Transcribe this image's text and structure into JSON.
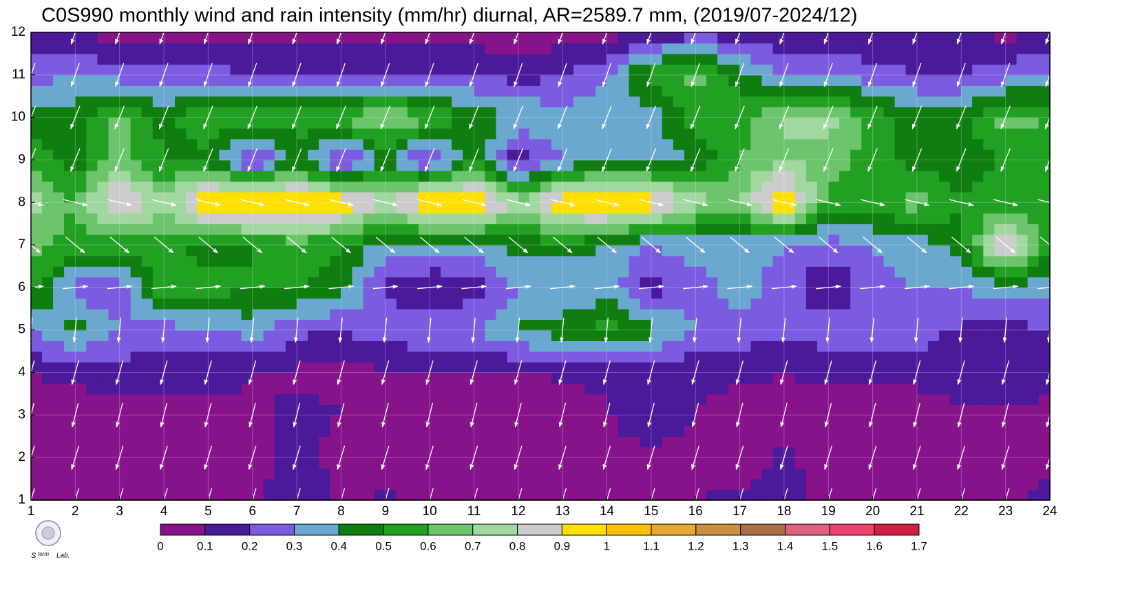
{
  "chart_data": {
    "type": "contour",
    "title": "C0S990 monthly wind and rain intensity (mm/hr) diurnal, AR=2589.7 mm, (2019/07-2024/12)",
    "x": [
      1,
      2,
      3,
      4,
      5,
      6,
      7,
      8,
      9,
      10,
      11,
      12,
      13,
      14,
      15,
      16,
      17,
      18,
      19,
      20,
      21,
      22,
      23,
      24
    ],
    "y": [
      1,
      2,
      3,
      4,
      5,
      6,
      7,
      8,
      9,
      10,
      11,
      12
    ],
    "xlim": [
      1,
      24
    ],
    "ylim": [
      1,
      12
    ],
    "xticks": [
      1,
      2,
      3,
      4,
      5,
      6,
      7,
      8,
      9,
      10,
      11,
      12,
      13,
      14,
      15,
      16,
      17,
      18,
      19,
      20,
      21,
      22,
      23,
      24
    ],
    "yticks": [
      1,
      2,
      3,
      4,
      5,
      6,
      7,
      8,
      9,
      10,
      11,
      12
    ],
    "grid": true,
    "z": [
      [
        0.05,
        0.05,
        0.05,
        0.05,
        0.05,
        0.05,
        0.22,
        0.08,
        0.12,
        0.08,
        0.05,
        0.05,
        0.05,
        0.05,
        0.05,
        0.1,
        0.12,
        0.13,
        0.08,
        0.05,
        0.05,
        0.05,
        0.08,
        0.15
      ],
      [
        0.05,
        0.05,
        0.05,
        0.05,
        0.05,
        0.05,
        0.15,
        0.05,
        0.05,
        0.05,
        0.05,
        0.05,
        0.05,
        0.05,
        0.05,
        0.05,
        0.05,
        0.12,
        0.05,
        0.05,
        0.05,
        0.05,
        0.05,
        0.05
      ],
      [
        0.05,
        0.05,
        0.05,
        0.05,
        0.05,
        0.08,
        0.13,
        0.1,
        0.05,
        0.05,
        0.05,
        0.05,
        0.05,
        0.08,
        0.22,
        0.1,
        0.05,
        0.05,
        0.05,
        0.05,
        0.05,
        0.08,
        0.08,
        0.05
      ],
      [
        0.1,
        0.12,
        0.15,
        0.15,
        0.15,
        0.1,
        0.08,
        0.08,
        0.08,
        0.08,
        0.08,
        0.08,
        0.12,
        0.12,
        0.12,
        0.12,
        0.12,
        0.1,
        0.12,
        0.12,
        0.13,
        0.15,
        0.2,
        0.15
      ],
      [
        0.3,
        0.45,
        0.3,
        0.25,
        0.28,
        0.35,
        0.22,
        0.2,
        0.25,
        0.3,
        0.3,
        0.42,
        0.45,
        0.55,
        0.45,
        0.3,
        0.25,
        0.25,
        0.25,
        0.25,
        0.25,
        0.18,
        0.15,
        0.2
      ],
      [
        0.55,
        0.25,
        0.22,
        0.6,
        0.55,
        0.5,
        0.5,
        0.45,
        0.18,
        0.1,
        0.15,
        0.3,
        0.3,
        0.35,
        0.15,
        0.25,
        0.35,
        0.25,
        0.1,
        0.25,
        0.3,
        0.3,
        0.35,
        0.35
      ],
      [
        0.65,
        0.55,
        0.55,
        0.55,
        0.45,
        0.5,
        0.55,
        0.5,
        0.35,
        0.35,
        0.35,
        0.45,
        0.45,
        0.4,
        0.3,
        0.35,
        0.35,
        0.3,
        0.25,
        0.3,
        0.35,
        0.45,
        0.95,
        0.5
      ],
      [
        0.75,
        0.6,
        0.95,
        0.7,
        1.05,
        1.05,
        1.05,
        1.0,
        0.8,
        1.05,
        1.05,
        0.75,
        1.0,
        1.05,
        1.0,
        0.75,
        0.7,
        1.05,
        0.55,
        0.55,
        0.65,
        0.5,
        0.55,
        0.5
      ],
      [
        0.55,
        0.45,
        0.65,
        0.5,
        0.45,
        0.15,
        0.45,
        0.15,
        0.4,
        0.15,
        0.5,
        0.1,
        0.3,
        0.4,
        0.35,
        0.4,
        0.6,
        0.7,
        0.65,
        0.55,
        0.45,
        0.45,
        0.5,
        0.5
      ],
      [
        0.45,
        0.45,
        0.65,
        0.45,
        0.6,
        0.55,
        0.55,
        0.6,
        0.75,
        0.6,
        0.45,
        0.4,
        0.35,
        0.35,
        0.35,
        0.55,
        0.55,
        0.7,
        0.75,
        0.55,
        0.45,
        0.45,
        0.65,
        0.6
      ],
      [
        0.25,
        0.3,
        0.25,
        0.25,
        0.25,
        0.2,
        0.2,
        0.2,
        0.2,
        0.2,
        0.2,
        0.15,
        0.2,
        0.3,
        0.55,
        0.65,
        0.45,
        0.3,
        0.3,
        0.25,
        0.2,
        0.2,
        0.25,
        0.3
      ],
      [
        0.15,
        0.1,
        0.05,
        0.05,
        0.05,
        0.05,
        0.05,
        0.05,
        0.05,
        0.05,
        0.05,
        0.05,
        0.05,
        0.05,
        0.12,
        0.15,
        0.15,
        0.12,
        0.1,
        0.1,
        0.1,
        0.15,
        0.05,
        0.15
      ]
    ],
    "wind_u": [
      -0.3,
      -0.3,
      -0.25,
      -0.25,
      -0.05,
      1,
      0.6,
      0.85,
      -0.4,
      -0.4,
      -0.35,
      -0.35
    ],
    "wind_v": [
      -1,
      -1,
      -1,
      -0.9,
      -0.5,
      0.1,
      -0.5,
      -0.2,
      -1,
      -1,
      -1,
      -1
    ],
    "levels": [
      0,
      0.1,
      0.2,
      0.3,
      0.4,
      0.5,
      0.6,
      0.7,
      0.8,
      0.9,
      1,
      1.1,
      1.2,
      1.3,
      1.4,
      1.5,
      1.6,
      1.7
    ],
    "colors": [
      "#87138a",
      "#4a1a9b",
      "#7b5ce0",
      "#6aa8d0",
      "#0f7d0f",
      "#22a022",
      "#6cc46c",
      "#a0d8a0",
      "#cccccc",
      "#ffe000",
      "#ffc000",
      "#e5a830",
      "#c89040",
      "#a87048",
      "#e06080",
      "#f04070",
      "#d02040"
    ]
  }
}
